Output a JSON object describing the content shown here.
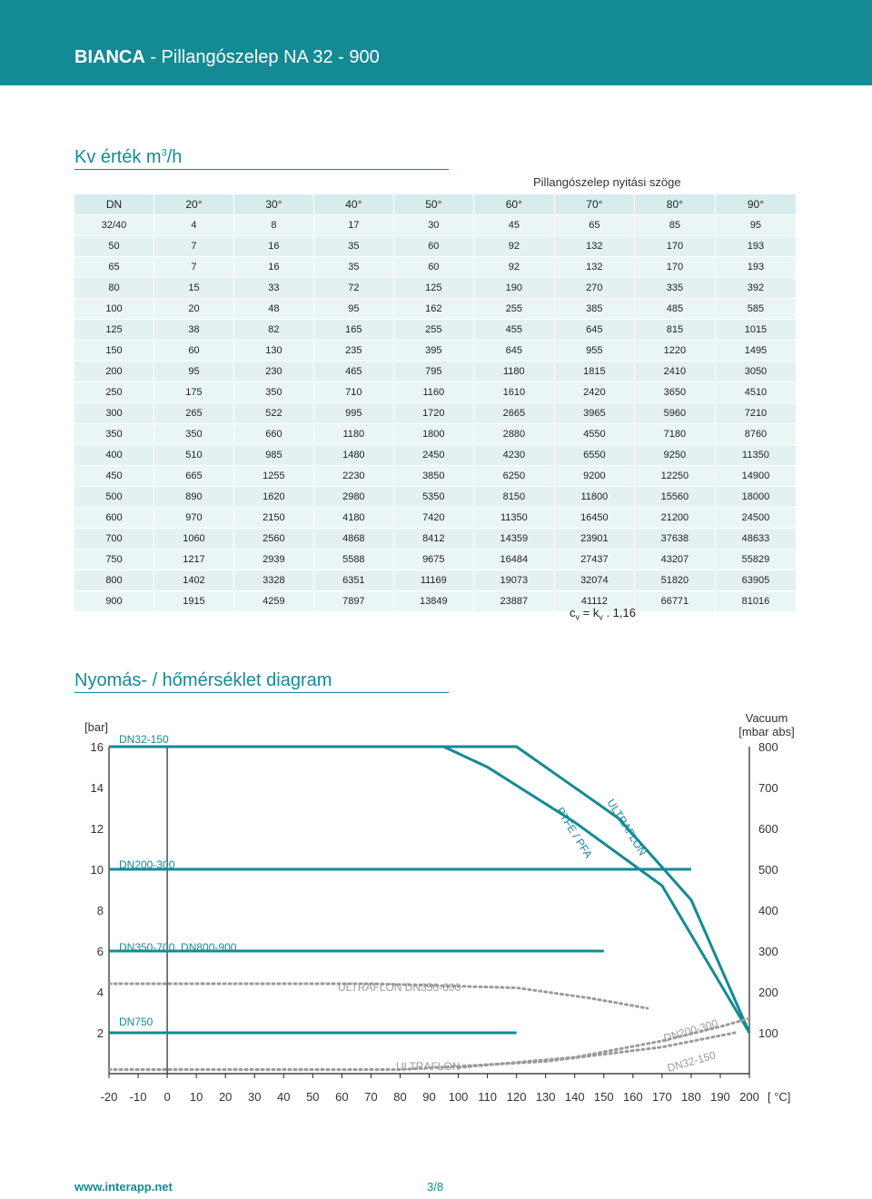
{
  "header": {
    "brand": "BIANCA",
    "title_rest": " - Pillangószelep NA 32 - 900"
  },
  "kv_section": {
    "title_main": "Kv érték m",
    "title_sup": "3",
    "title_tail": "/h",
    "subheading": "Pillangószelep nyitási szöge",
    "columns": [
      "DN",
      "20°",
      "30°",
      "40°",
      "50°",
      "60°",
      "70°",
      "80°",
      "90°"
    ],
    "rows": [
      [
        "32/40",
        "4",
        "8",
        "17",
        "30",
        "45",
        "65",
        "85",
        "95"
      ],
      [
        "50",
        "7",
        "16",
        "35",
        "60",
        "92",
        "132",
        "170",
        "193"
      ],
      [
        "65",
        "7",
        "16",
        "35",
        "60",
        "92",
        "132",
        "170",
        "193"
      ],
      [
        "80",
        "15",
        "33",
        "72",
        "125",
        "190",
        "270",
        "335",
        "392"
      ],
      [
        "100",
        "20",
        "48",
        "95",
        "162",
        "255",
        "385",
        "485",
        "585"
      ],
      [
        "125",
        "38",
        "82",
        "165",
        "255",
        "455",
        "645",
        "815",
        "1015"
      ],
      [
        "150",
        "60",
        "130",
        "235",
        "395",
        "645",
        "955",
        "1220",
        "1495"
      ],
      [
        "200",
        "95",
        "230",
        "465",
        "795",
        "1180",
        "1815",
        "2410",
        "3050"
      ],
      [
        "250",
        "175",
        "350",
        "710",
        "1160",
        "1610",
        "2420",
        "3650",
        "4510"
      ],
      [
        "300",
        "265",
        "522",
        "995",
        "1720",
        "2665",
        "3965",
        "5960",
        "7210"
      ],
      [
        "350",
        "350",
        "660",
        "1180",
        "1800",
        "2880",
        "4550",
        "7180",
        "8760"
      ],
      [
        "400",
        "510",
        "985",
        "1480",
        "2450",
        "4230",
        "6550",
        "9250",
        "11350"
      ],
      [
        "450",
        "665",
        "1255",
        "2230",
        "3850",
        "6250",
        "9200",
        "12250",
        "14900"
      ],
      [
        "500",
        "890",
        "1620",
        "2980",
        "5350",
        "8150",
        "11800",
        "15560",
        "18000"
      ],
      [
        "600",
        "970",
        "2150",
        "4180",
        "7420",
        "11350",
        "16450",
        "21200",
        "24500"
      ],
      [
        "700",
        "1060",
        "2560",
        "4868",
        "8412",
        "14359",
        "23901",
        "37638",
        "48633"
      ],
      [
        "750",
        "1217",
        "2939",
        "5588",
        "9675",
        "16484",
        "27437",
        "43207",
        "55829"
      ],
      [
        "800",
        "1402",
        "3328",
        "6351",
        "11169",
        "19073",
        "32074",
        "51820",
        "63905"
      ],
      [
        "900",
        "1915",
        "4259",
        "7897",
        "13849",
        "23887",
        "41112",
        "66771",
        "81016"
      ]
    ],
    "formula": {
      "c": "c",
      "c_sub": "v",
      "eq": " = k",
      "k_sub": "v",
      "tail": " . 1,16"
    }
  },
  "diagram_section": {
    "title": "Nyomás- / hőmérséklet diagram",
    "left_unit": "[bar]",
    "right_unit_1": "Vacuum",
    "right_unit_2": "[mbar abs]",
    "x_unit": "[ °C]",
    "colors": {
      "accent": "#148a95",
      "dotted": "#9a9a9a"
    },
    "chart_data": {
      "type": "line",
      "xlabel": "[ °C]",
      "ylabel": "[bar]",
      "y2label": "Vacuum [mbar abs]",
      "x_ticks": [
        "-20",
        "-10",
        "0",
        "10",
        "20",
        "30",
        "40",
        "50",
        "60",
        "70",
        "80",
        "90",
        "100",
        "110",
        "120",
        "130",
        "140",
        "150",
        "160",
        "170",
        "180",
        "190",
        "200"
      ],
      "y_ticks": [
        "2",
        "4",
        "6",
        "8",
        "10",
        "12",
        "14",
        "16"
      ],
      "y2_ticks": [
        "100",
        "200",
        "300",
        "400",
        "500",
        "600",
        "700",
        "800"
      ],
      "xlim": [
        -20,
        200
      ],
      "ylim": [
        0,
        16
      ],
      "series": [
        {
          "name": "PTFE / PFA",
          "style": "solid",
          "x": [
            -20,
            95,
            110,
            140,
            170,
            200
          ],
          "y": [
            16,
            16,
            15,
            12.3,
            9.2,
            2
          ]
        },
        {
          "name": "ULTRAFLON",
          "style": "solid",
          "x": [
            -20,
            120,
            155,
            180,
            200
          ],
          "y": [
            16,
            16,
            12.5,
            8.5,
            2
          ]
        },
        {
          "name": "",
          "style": "solid",
          "x": [
            -20,
            180
          ],
          "y": [
            10,
            10
          ]
        },
        {
          "name": "",
          "style": "solid",
          "x": [
            -20,
            150
          ],
          "y": [
            6,
            6
          ]
        },
        {
          "name": "",
          "style": "solid",
          "x": [
            -20,
            120
          ],
          "y": [
            2,
            2
          ]
        },
        {
          "name": "ULTRAFLON DN350-600",
          "style": "dotted",
          "x": [
            -20,
            70,
            120,
            145,
            165
          ],
          "y": [
            4.4,
            4.4,
            4.2,
            3.7,
            3.2
          ]
        },
        {
          "name": "DN200-300",
          "style": "dotted",
          "x": [
            100,
            140,
            170,
            190,
            200
          ],
          "y": [
            0.3,
            0.8,
            1.6,
            2.3,
            2.7
          ]
        },
        {
          "name": "DN32-150",
          "style": "dotted",
          "x": [
            -20,
            80,
            130,
            170,
            195
          ],
          "y": [
            0.2,
            0.2,
            0.6,
            1.3,
            2.0
          ]
        }
      ],
      "annotations": [
        "DN32-150",
        "DN200-300",
        "DN350-700, DN800-900",
        "DN750",
        "PTFE / PFA",
        "ULTRAFLON",
        "ULTRAFLON DN350-600",
        "ULTRAFLON",
        "DN200-300",
        "DN32-150"
      ]
    }
  },
  "footer": {
    "url": "www.interapp.net",
    "page": "3/8"
  }
}
